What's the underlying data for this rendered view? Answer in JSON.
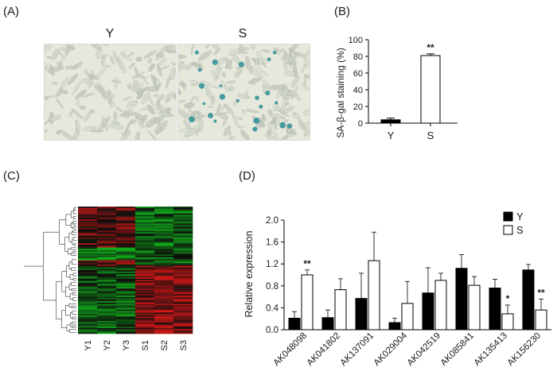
{
  "panel_labels": {
    "a": "(A)",
    "b": "(B)",
    "c": "(C)",
    "d": "(D)"
  },
  "panel_a": {
    "images": [
      {
        "label": "Y"
      },
      {
        "label": "S"
      }
    ]
  },
  "panel_c": {
    "column_labels": [
      "Y1",
      "Y2",
      "Y3",
      "S1",
      "S2",
      "S3"
    ],
    "colors": {
      "low": "#11c21c",
      "mid": "#0d0d0d",
      "high": "#e01818"
    }
  },
  "chart_data": [
    {
      "id": "B",
      "type": "bar",
      "categories": [
        "Y",
        "S"
      ],
      "values": [
        4,
        81
      ],
      "errors": [
        2,
        2
      ],
      "fills": [
        "#000000",
        "#ffffff"
      ],
      "significance": [
        "",
        "**"
      ],
      "ylabel": "SA-β-gal staining (%)",
      "ylim": [
        0,
        100
      ],
      "yticks": [
        0,
        20,
        40,
        60,
        80,
        100
      ],
      "grid": false
    },
    {
      "id": "D",
      "type": "bar",
      "categories": [
        "AK048098",
        "AK041802",
        "AK137091",
        "AK029004",
        "AK042519",
        "AK085841",
        "AK135413",
        "AK156230"
      ],
      "series": [
        {
          "name": "Y",
          "color": "#000000",
          "values": [
            0.21,
            0.22,
            0.57,
            0.13,
            0.67,
            1.12,
            0.76,
            1.09
          ],
          "errors": [
            0.12,
            0.14,
            0.46,
            0.08,
            0.46,
            0.25,
            0.16,
            0.1
          ]
        },
        {
          "name": "S",
          "color": "#ffffff",
          "values": [
            1.0,
            0.73,
            1.26,
            0.48,
            0.9,
            0.81,
            0.29,
            0.36
          ],
          "errors": [
            0.09,
            0.2,
            0.52,
            0.4,
            0.13,
            0.16,
            0.16,
            0.2
          ]
        }
      ],
      "significance": [
        "**",
        "",
        "",
        "",
        "",
        "",
        "*",
        "**"
      ],
      "ylabel": "Relative expression",
      "ylim": [
        0,
        2.0
      ],
      "yticks": [
        "0.0",
        "0.4",
        "0.8",
        "1.2",
        "1.6",
        "2.0"
      ],
      "legend": "top-right",
      "grid": false
    }
  ]
}
